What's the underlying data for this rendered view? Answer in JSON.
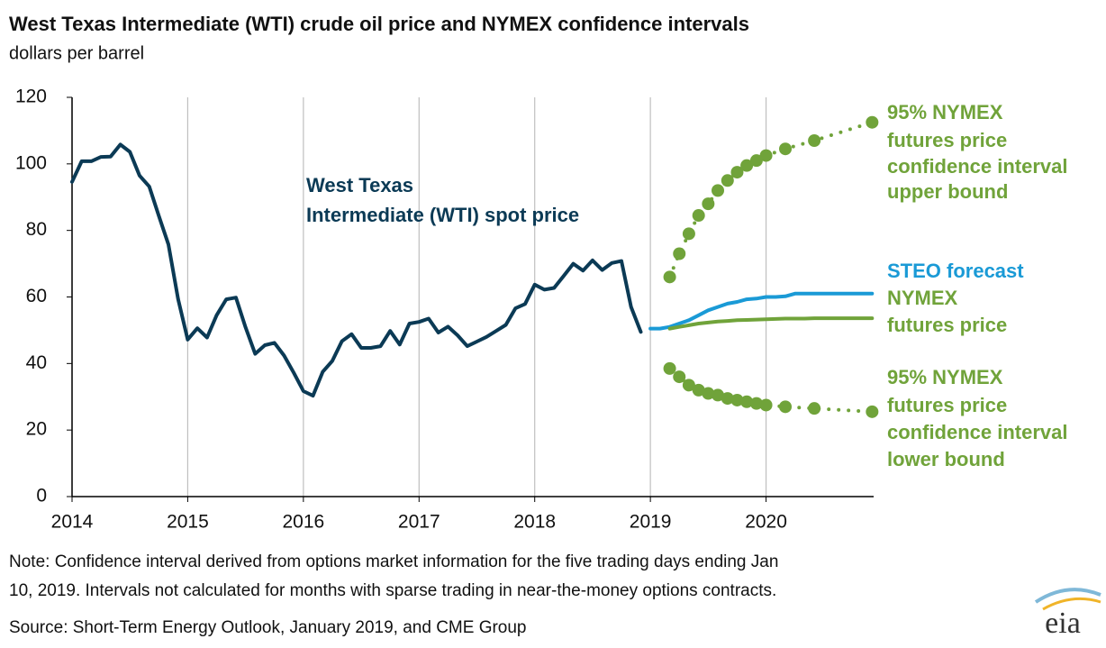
{
  "chart_data": {
    "type": "line",
    "title": "West Texas Intermediate (WTI) crude oil price and NYMEX confidence intervals",
    "subtitle": "dollars per barrel",
    "xlim": [
      2014,
      2020.93
    ],
    "xticks": [
      2014,
      2015,
      2016,
      2017,
      2018,
      2019,
      2020
    ],
    "ylim": [
      0,
      120
    ],
    "yticks": [
      0,
      20,
      40,
      60,
      80,
      100,
      120
    ],
    "grid": "x",
    "series": [
      {
        "name": "West Texas Intermediate (WTI) spot price",
        "color": "#0b3a55",
        "line_style": "solid",
        "markers": false,
        "x": [
          2014,
          2014.083,
          2014.167,
          2014.25,
          2014.333,
          2014.417,
          2014.5,
          2014.583,
          2014.667,
          2014.75,
          2014.833,
          2014.917,
          2015,
          2015.083,
          2015.167,
          2015.25,
          2015.333,
          2015.417,
          2015.5,
          2015.583,
          2015.667,
          2015.75,
          2015.833,
          2015.917,
          2016,
          2016.083,
          2016.167,
          2016.25,
          2016.333,
          2016.417,
          2016.5,
          2016.583,
          2016.667,
          2016.75,
          2016.833,
          2016.917,
          2017,
          2017.083,
          2017.167,
          2017.25,
          2017.333,
          2017.417,
          2017.5,
          2017.583,
          2017.667,
          2017.75,
          2017.833,
          2017.917,
          2018,
          2018.083,
          2018.167,
          2018.25,
          2018.333,
          2018.417,
          2018.5,
          2018.583,
          2018.667,
          2018.75,
          2018.833,
          2018.917
        ],
        "values": [
          94.6,
          100.8,
          100.8,
          102.1,
          102.2,
          105.8,
          103.6,
          96.5,
          93.2,
          84.4,
          75.8,
          59.3,
          47.2,
          50.6,
          47.8,
          54.5,
          59.3,
          59.8,
          50.9,
          42.9,
          45.5,
          46.2,
          42.4,
          37.2,
          31.7,
          30.3,
          37.5,
          40.8,
          46.7,
          48.8,
          44.7,
          44.7,
          45.2,
          49.8,
          45.7,
          52.0,
          52.5,
          53.5,
          49.3,
          51.1,
          48.5,
          45.2,
          46.6,
          48.0,
          49.8,
          51.6,
          56.6,
          57.9,
          63.7,
          62.2,
          62.7,
          66.3,
          70.0,
          67.9,
          71.0,
          68.1,
          70.2,
          70.8,
          57.0,
          49.5
        ]
      },
      {
        "name": "STEO forecast",
        "color": "#1a9ad6",
        "line_style": "solid",
        "markers": false,
        "x": [
          2019,
          2019.083,
          2019.167,
          2019.25,
          2019.333,
          2019.417,
          2019.5,
          2019.583,
          2019.667,
          2019.75,
          2019.833,
          2019.917,
          2020,
          2020.083,
          2020.167,
          2020.25,
          2020.333,
          2020.417,
          2020.5,
          2020.583,
          2020.667,
          2020.75,
          2020.833,
          2020.917
        ],
        "values": [
          50.5,
          50.5,
          51,
          52,
          53,
          54.5,
          56,
          57,
          58,
          58.5,
          59.3,
          59.5,
          60,
          60,
          60.2,
          61,
          61,
          61,
          61,
          61,
          61,
          61,
          61,
          61
        ]
      },
      {
        "name": "NYMEX futures price",
        "color": "#70a33a",
        "line_style": "solid",
        "markers": false,
        "x": [
          2019.167,
          2019.25,
          2019.333,
          2019.417,
          2019.5,
          2019.583,
          2019.667,
          2019.75,
          2019.833,
          2019.917,
          2020,
          2020.083,
          2020.167,
          2020.25,
          2020.333,
          2020.417,
          2020.5,
          2020.583,
          2020.667,
          2020.75,
          2020.833,
          2020.917
        ],
        "values": [
          50.5,
          51,
          51.5,
          52,
          52.3,
          52.6,
          52.8,
          53,
          53.1,
          53.2,
          53.3,
          53.4,
          53.5,
          53.5,
          53.5,
          53.6,
          53.6,
          53.6,
          53.6,
          53.6,
          53.6,
          53.6
        ]
      },
      {
        "name": "95% NYMEX futures price confidence interval upper bound",
        "color": "#70a33a",
        "line_style": "dotted",
        "markers": true,
        "x": [
          2019.167,
          2019.25,
          2019.333,
          2019.417,
          2019.5,
          2019.583,
          2019.667,
          2019.75,
          2019.833,
          2019.917,
          2020,
          2020.167,
          2020.417,
          2020.917
        ],
        "values": [
          66,
          73,
          79,
          84.5,
          88,
          92,
          95,
          97.5,
          99.5,
          101,
          102.5,
          104.5,
          107,
          112.5
        ]
      },
      {
        "name": "95% NYMEX futures price confidence interval lower bound",
        "color": "#70a33a",
        "line_style": "dotted",
        "markers": true,
        "x": [
          2019.167,
          2019.25,
          2019.333,
          2019.417,
          2019.5,
          2019.583,
          2019.667,
          2019.75,
          2019.833,
          2019.917,
          2020,
          2020.167,
          2020.417,
          2020.917
        ],
        "values": [
          38.5,
          36,
          33.5,
          32,
          31,
          30.5,
          29.5,
          29,
          28.5,
          28,
          27.5,
          27,
          26.5,
          25.5
        ]
      }
    ],
    "annotations": [
      {
        "lines": [
          "West Texas",
          "Intermediate (WTI) spot price"
        ],
        "color": "#0b3a55"
      },
      {
        "lines": [
          "95% NYMEX",
          "futures price",
          "confidence interval",
          "upper bound"
        ],
        "color": "#70a33a"
      },
      {
        "lines": [
          "STEO forecast"
        ],
        "color": "#1a9ad6"
      },
      {
        "lines": [
          "NYMEX",
          "futures price"
        ],
        "color": "#70a33a"
      },
      {
        "lines": [
          "95% NYMEX",
          "futures price",
          "confidence interval",
          "lower bound"
        ],
        "color": "#70a33a"
      }
    ],
    "note": [
      "Note: Confidence interval derived from options market information for the five trading days ending Jan",
      "10, 2019. Intervals not calculated for months with sparse trading in near-the-money options contracts."
    ],
    "source": "Source: Short-Term Energy Outlook, January 2019, and CME Group",
    "logo": "eia"
  }
}
